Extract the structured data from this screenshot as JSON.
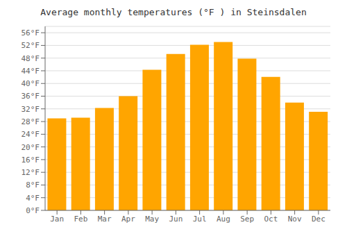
{
  "chart_data": {
    "type": "bar",
    "title": "Average monthly temperatures (°F ) in Steinsdalen",
    "categories": [
      "Jan",
      "Feb",
      "Mar",
      "Apr",
      "May",
      "Jun",
      "Jul",
      "Aug",
      "Sep",
      "Oct",
      "Nov",
      "Dec"
    ],
    "values": [
      29.0,
      29.2,
      32.3,
      36.0,
      44.3,
      49.3,
      52.2,
      53.1,
      47.8,
      42.1,
      34.0,
      31.1
    ],
    "color": "#FFA500",
    "ylim": [
      0,
      58
    ],
    "yticks": [
      {
        "value": 0,
        "label": "0°F"
      },
      {
        "value": 4,
        "label": "4°F"
      },
      {
        "value": 8,
        "label": "8°F"
      },
      {
        "value": 12,
        "label": "12°F"
      },
      {
        "value": 16,
        "label": "16°F"
      },
      {
        "value": 20,
        "label": "20°F"
      },
      {
        "value": 24,
        "label": "24°F"
      },
      {
        "value": 28,
        "label": "28°F"
      },
      {
        "value": 32,
        "label": "32°F"
      },
      {
        "value": 36,
        "label": "36°F"
      },
      {
        "value": 40,
        "label": "40°F"
      },
      {
        "value": 44,
        "label": "44°F"
      },
      {
        "value": 48,
        "label": "48°F"
      },
      {
        "value": 52,
        "label": "52°F"
      },
      {
        "value": 56,
        "label": "56°F"
      }
    ],
    "grid": true
  }
}
